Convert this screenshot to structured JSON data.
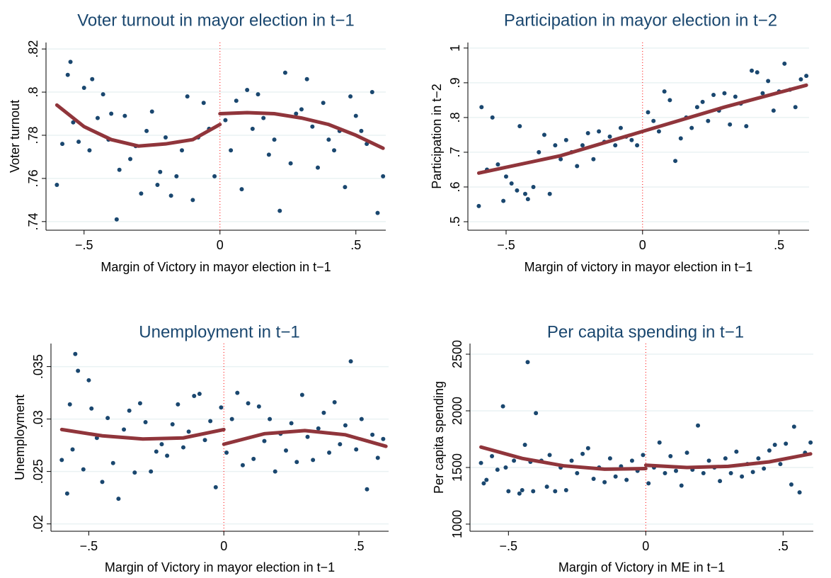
{
  "chart_data": [
    {
      "type": "scatter",
      "title": "Voter turnout in mayor election in t−1",
      "xlabel": "Margin of Victory in mayor election in t−1",
      "ylabel": "Voter turnout",
      "xlim": [
        -0.64,
        0.61
      ],
      "ylim": [
        0.736,
        0.823
      ],
      "xticks": [
        {
          "value": -0.5,
          "label": "−.5"
        },
        0,
        {
          "value": 0.5,
          "label": ".5"
        }
      ],
      "yticks": [
        {
          "value": 0.74,
          "label": ".74"
        },
        {
          "value": 0.76,
          "label": ".76"
        },
        {
          "value": 0.78,
          "label": ".78"
        },
        {
          "value": 0.8,
          "label": ".8"
        },
        {
          "value": 0.82,
          "label": ".82"
        }
      ],
      "grid": true,
      "cutoff": 0,
      "point_color": "#1a476f",
      "line_color": "#90353b",
      "cutoff_color": "#ff0000",
      "points": {
        "x": [
          -0.6,
          -0.58,
          -0.56,
          -0.55,
          -0.54,
          -0.52,
          -0.5,
          -0.48,
          -0.47,
          -0.45,
          -0.43,
          -0.41,
          -0.4,
          -0.38,
          -0.37,
          -0.35,
          -0.33,
          -0.31,
          -0.29,
          -0.27,
          -0.25,
          -0.23,
          -0.22,
          -0.2,
          -0.18,
          -0.16,
          -0.14,
          -0.12,
          -0.1,
          -0.08,
          -0.06,
          -0.04,
          -0.02,
          0.02,
          0.04,
          0.06,
          0.08,
          0.1,
          0.12,
          0.14,
          0.16,
          0.18,
          0.2,
          0.22,
          0.24,
          0.26,
          0.28,
          0.3,
          0.32,
          0.34,
          0.36,
          0.38,
          0.4,
          0.42,
          0.44,
          0.46,
          0.48,
          0.5,
          0.52,
          0.54,
          0.56,
          0.58,
          0.6
        ],
        "y": [
          0.757,
          0.776,
          0.808,
          0.814,
          0.786,
          0.777,
          0.802,
          0.773,
          0.806,
          0.788,
          0.799,
          0.778,
          0.79,
          0.741,
          0.764,
          0.789,
          0.769,
          0.775,
          0.753,
          0.782,
          0.791,
          0.757,
          0.763,
          0.779,
          0.752,
          0.761,
          0.773,
          0.798,
          0.75,
          0.779,
          0.795,
          0.783,
          0.761,
          0.787,
          0.773,
          0.796,
          0.755,
          0.801,
          0.783,
          0.799,
          0.788,
          0.771,
          0.778,
          0.745,
          0.809,
          0.767,
          0.79,
          0.792,
          0.806,
          0.784,
          0.765,
          0.795,
          0.778,
          0.773,
          0.782,
          0.756,
          0.798,
          0.789,
          0.782,
          0.776,
          0.8,
          0.744,
          0.761
        ]
      },
      "fit": [
        {
          "x": [
            -0.6,
            -0.5,
            -0.4,
            -0.3,
            -0.2,
            -0.1,
            0
          ],
          "y": [
            0.794,
            0.784,
            0.778,
            0.775,
            0.776,
            0.778,
            0.785
          ]
        },
        {
          "x": [
            0,
            0.1,
            0.2,
            0.3,
            0.4,
            0.5,
            0.6
          ],
          "y": [
            0.79,
            0.7905,
            0.79,
            0.788,
            0.785,
            0.78,
            0.774
          ]
        }
      ]
    },
    {
      "type": "scatter",
      "title": "Participation in mayor election in t−2",
      "xlabel": "Margin of victory in mayor election in t−1",
      "ylabel": "Participation in t−2",
      "xlim": [
        -0.64,
        0.61
      ],
      "ylim": [
        0.4755,
        1.016
      ],
      "xticks": [
        {
          "value": -0.5,
          "label": "−.5"
        },
        0,
        {
          "value": 0.5,
          "label": ".5"
        }
      ],
      "yticks": [
        {
          "value": 0.5,
          "label": ".5"
        },
        {
          "value": 0.6,
          "label": ".6"
        },
        {
          "value": 0.7,
          "label": ".7"
        },
        {
          "value": 0.8,
          "label": ".8"
        },
        {
          "value": 0.9,
          "label": ".9"
        },
        1
      ],
      "grid": true,
      "cutoff": 0,
      "point_color": "#1a476f",
      "line_color": "#90353b",
      "cutoff_color": "#ff0000",
      "points": {
        "x": [
          -0.6,
          -0.59,
          -0.57,
          -0.55,
          -0.53,
          -0.51,
          -0.5,
          -0.48,
          -0.46,
          -0.45,
          -0.43,
          -0.42,
          -0.4,
          -0.38,
          -0.36,
          -0.34,
          -0.32,
          -0.3,
          -0.28,
          -0.26,
          -0.24,
          -0.22,
          -0.2,
          -0.18,
          -0.16,
          -0.14,
          -0.12,
          -0.1,
          -0.08,
          -0.06,
          -0.04,
          -0.02,
          0.02,
          0.04,
          0.06,
          0.08,
          0.1,
          0.12,
          0.14,
          0.16,
          0.18,
          0.2,
          0.22,
          0.24,
          0.26,
          0.28,
          0.3,
          0.32,
          0.34,
          0.36,
          0.38,
          0.4,
          0.42,
          0.44,
          0.46,
          0.48,
          0.5,
          0.52,
          0.54,
          0.56,
          0.58,
          0.6
        ],
        "y": [
          0.545,
          0.83,
          0.65,
          0.8,
          0.665,
          0.56,
          0.63,
          0.61,
          0.59,
          0.775,
          0.58,
          0.565,
          0.6,
          0.7,
          0.75,
          0.58,
          0.72,
          0.68,
          0.735,
          0.7,
          0.66,
          0.72,
          0.755,
          0.68,
          0.76,
          0.73,
          0.745,
          0.72,
          0.77,
          0.745,
          0.735,
          0.72,
          0.815,
          0.79,
          0.76,
          0.875,
          0.85,
          0.675,
          0.74,
          0.8,
          0.77,
          0.83,
          0.845,
          0.79,
          0.865,
          0.82,
          0.87,
          0.78,
          0.86,
          0.84,
          0.775,
          0.935,
          0.93,
          0.87,
          0.905,
          0.82,
          0.875,
          0.955,
          0.88,
          0.83,
          0.91,
          0.92
        ]
      },
      "fit": [
        {
          "x": [
            -0.6,
            -0.3,
            0
          ],
          "y": [
            0.64,
            0.69,
            0.76
          ]
        },
        {
          "x": [
            0,
            0.3,
            0.6
          ],
          "y": [
            0.76,
            0.83,
            0.893
          ]
        }
      ]
    },
    {
      "type": "scatter",
      "title": "Unemployment in t−1",
      "xlabel": "Margin of Victory in mayor election in t−1",
      "ylabel": "Unemployment",
      "xlim": [
        -0.64,
        0.61
      ],
      "ylim": [
        0.0193,
        0.0372
      ],
      "xticks": [
        {
          "value": -0.5,
          "label": "−.5"
        },
        0,
        {
          "value": 0.5,
          "label": ".5"
        }
      ],
      "yticks": [
        {
          "value": 0.02,
          "label": ".02"
        },
        {
          "value": 0.025,
          "label": ".025"
        },
        {
          "value": 0.03,
          "label": ".03"
        },
        {
          "value": 0.035,
          "label": ".035"
        }
      ],
      "grid": true,
      "cutoff": 0,
      "point_color": "#1a476f",
      "line_color": "#90353b",
      "cutoff_color": "#ff0000",
      "points": {
        "x": [
          -0.6,
          -0.58,
          -0.57,
          -0.56,
          -0.55,
          -0.54,
          -0.52,
          -0.5,
          -0.49,
          -0.47,
          -0.45,
          -0.43,
          -0.41,
          -0.39,
          -0.37,
          -0.35,
          -0.33,
          -0.31,
          -0.29,
          -0.27,
          -0.25,
          -0.23,
          -0.21,
          -0.19,
          -0.17,
          -0.15,
          -0.13,
          -0.11,
          -0.09,
          -0.07,
          -0.05,
          -0.03,
          -0.01,
          0.01,
          0.03,
          0.05,
          0.07,
          0.09,
          0.11,
          0.13,
          0.15,
          0.17,
          0.19,
          0.21,
          0.23,
          0.25,
          0.27,
          0.29,
          0.31,
          0.33,
          0.35,
          0.37,
          0.39,
          0.41,
          0.43,
          0.45,
          0.47,
          0.49,
          0.51,
          0.53,
          0.55,
          0.57,
          0.59
        ],
        "y": [
          0.0261,
          0.0229,
          0.0314,
          0.0271,
          0.0362,
          0.0346,
          0.0252,
          0.0337,
          0.031,
          0.0282,
          0.024,
          0.0301,
          0.0258,
          0.0224,
          0.029,
          0.0308,
          0.0249,
          0.0315,
          0.0297,
          0.025,
          0.0269,
          0.0276,
          0.0265,
          0.0295,
          0.0314,
          0.0273,
          0.0288,
          0.0322,
          0.0324,
          0.028,
          0.0298,
          0.0235,
          0.0311,
          0.0268,
          0.03,
          0.0325,
          0.0256,
          0.0315,
          0.0262,
          0.0312,
          0.0279,
          0.03,
          0.025,
          0.0286,
          0.027,
          0.0296,
          0.0259,
          0.0323,
          0.0283,
          0.0261,
          0.0291,
          0.0306,
          0.0268,
          0.0316,
          0.0276,
          0.0294,
          0.0355,
          0.0271,
          0.03,
          0.0233,
          0.0285,
          0.0263,
          0.0281
        ]
      },
      "fit": [
        {
          "x": [
            -0.6,
            -0.45,
            -0.3,
            -0.15,
            0
          ],
          "y": [
            0.029,
            0.0284,
            0.0281,
            0.0282,
            0.029
          ]
        },
        {
          "x": [
            0,
            0.15,
            0.3,
            0.45,
            0.6
          ],
          "y": [
            0.0276,
            0.0286,
            0.0289,
            0.0285,
            0.0274
          ]
        }
      ]
    },
    {
      "type": "scatter",
      "title": "Per capita spending in t−1",
      "xlabel": "Margin of Victory in ME in t−1",
      "ylabel": "Per capita spending",
      "xlim": [
        -0.64,
        0.61
      ],
      "ylim": [
        937,
        2594
      ],
      "xticks": [
        {
          "value": -0.5,
          "label": "−.5"
        },
        0,
        {
          "value": 0.5,
          "label": ".5"
        }
      ],
      "yticks": [
        1000,
        1500,
        2000,
        2500
      ],
      "grid": true,
      "cutoff": 0,
      "point_color": "#1a476f",
      "line_color": "#90353b",
      "cutoff_color": "#ff0000",
      "points": {
        "x": [
          -0.6,
          -0.59,
          -0.58,
          -0.56,
          -0.54,
          -0.52,
          -0.51,
          -0.5,
          -0.48,
          -0.46,
          -0.45,
          -0.44,
          -0.43,
          -0.42,
          -0.41,
          -0.4,
          -0.38,
          -0.36,
          -0.35,
          -0.33,
          -0.31,
          -0.29,
          -0.27,
          -0.25,
          -0.23,
          -0.21,
          -0.19,
          -0.17,
          -0.15,
          -0.13,
          -0.11,
          -0.09,
          -0.07,
          -0.05,
          -0.03,
          -0.01,
          0.01,
          0.03,
          0.05,
          0.07,
          0.09,
          0.11,
          0.13,
          0.15,
          0.17,
          0.19,
          0.21,
          0.23,
          0.25,
          0.27,
          0.29,
          0.31,
          0.33,
          0.35,
          0.37,
          0.39,
          0.41,
          0.43,
          0.45,
          0.47,
          0.49,
          0.51,
          0.53,
          0.54,
          0.56,
          0.58,
          0.6
        ],
        "y": [
          1540,
          1360,
          1390,
          1600,
          1480,
          2040,
          1500,
          1290,
          1560,
          1270,
          1300,
          1700,
          2430,
          1550,
          1290,
          1980,
          1560,
          1330,
          1610,
          1290,
          1500,
          1300,
          1560,
          1450,
          1620,
          1670,
          1400,
          1500,
          1370,
          1580,
          1420,
          1510,
          1390,
          1560,
          1470,
          1610,
          1360,
          1500,
          1720,
          1450,
          1600,
          1470,
          1340,
          1630,
          1480,
          1870,
          1450,
          1560,
          1500,
          1380,
          1580,
          1450,
          1640,
          1420,
          1530,
          1460,
          1580,
          1490,
          1650,
          1700,
          1530,
          1710,
          1350,
          1860,
          1280,
          1630,
          1720
        ]
      },
      "fit": [
        {
          "x": [
            -0.6,
            -0.45,
            -0.3,
            -0.15,
            0
          ],
          "y": [
            1680,
            1580,
            1515,
            1485,
            1490
          ]
        },
        {
          "x": [
            0,
            0.15,
            0.3,
            0.45,
            0.6
          ],
          "y": [
            1520,
            1500,
            1510,
            1550,
            1620
          ]
        }
      ]
    }
  ]
}
